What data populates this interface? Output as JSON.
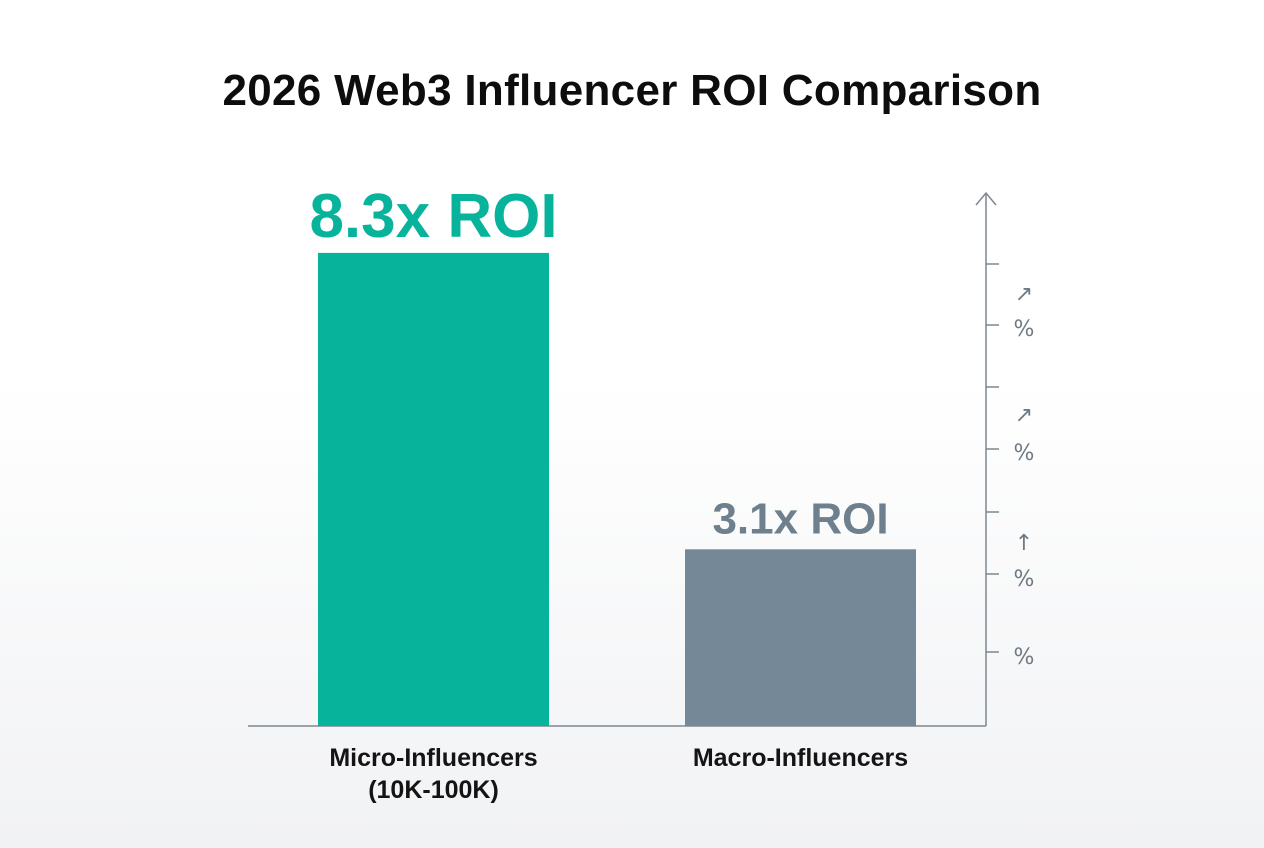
{
  "chart_data": {
    "type": "bar",
    "title": "2026 Web3 Influencer ROI Comparison",
    "categories": [
      [
        "Micro-Influencers",
        "(10K-100K)"
      ],
      [
        "Macro-Influencers"
      ]
    ],
    "values": [
      8.3,
      3.1
    ],
    "value_labels": [
      "8.3x ROI",
      "3.1x ROI"
    ],
    "colors": [
      "#08b39b",
      "#748897"
    ],
    "value_label_colors": [
      "#08b39b",
      "#6e7f8d"
    ],
    "ylim": [
      0,
      10
    ],
    "xlabel": "",
    "ylabel": "",
    "right_axis": {
      "tick_labels": [
        "%",
        "%",
        "%",
        "%"
      ],
      "tick_icons": [
        "arrow-up-right-icon",
        "arrow-up-right-icon",
        "arrow-up-icon"
      ],
      "icon_glyphs": [
        "↗",
        "↗",
        "↑"
      ]
    },
    "grid": false,
    "legend": "none"
  }
}
